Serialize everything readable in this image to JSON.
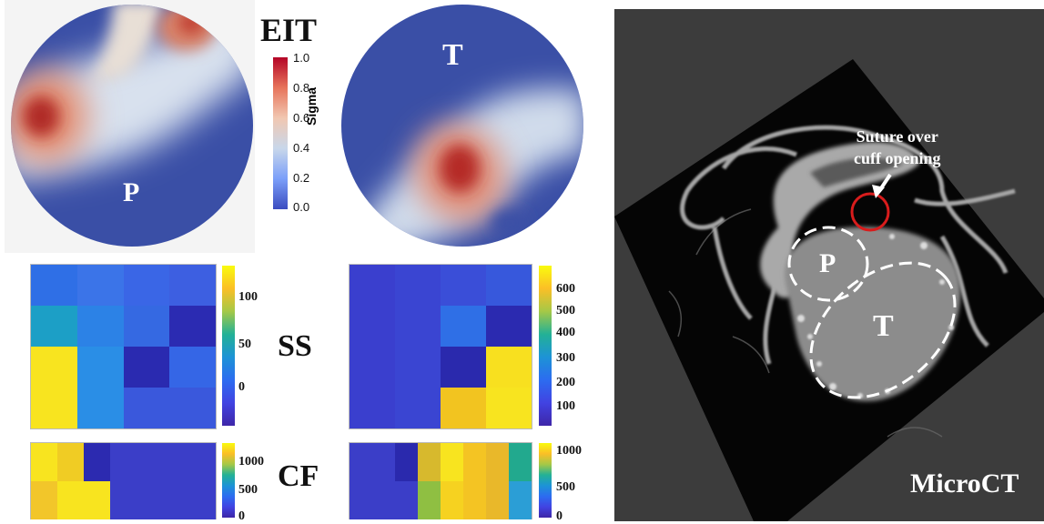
{
  "eit": {
    "label": "EIT",
    "left_region": "P",
    "right_region": "T",
    "colorbar": {
      "title": "Sigma",
      "ticks": [
        "1.0",
        "0.8",
        "0.6",
        "0.4",
        "0.2",
        "0.0"
      ]
    }
  },
  "ss": {
    "label": "SS",
    "left_ticks": [
      "100",
      "50",
      "0"
    ],
    "right_ticks": [
      "600",
      "500",
      "400",
      "300",
      "200",
      "100"
    ],
    "left_grid": [
      [
        "#2f6fe6",
        "#3b74e8",
        "#3a66e6",
        "#3d5fe1"
      ],
      [
        "#1c9fc6",
        "#2c82e6",
        "#3569e2",
        "#2b2bb2"
      ],
      [
        "#f8e41f",
        "#2a8ee6",
        "#2a2ab0",
        "#3566e6"
      ],
      [
        "#f8e41f",
        "#2a8ee6",
        "#3a58dc",
        "#3a58dc"
      ]
    ],
    "right_grid": [
      [
        "#3a3fce",
        "#3a45d2",
        "#3a4ed8",
        "#3758dc"
      ],
      [
        "#3a3fce",
        "#3a45d2",
        "#2f6fe6",
        "#2b2ab0"
      ],
      [
        "#3a3fce",
        "#3a45d2",
        "#2a29ad",
        "#f8e01f"
      ],
      [
        "#3a3fce",
        "#3a45d2",
        "#f2c420",
        "#f8e41f"
      ]
    ]
  },
  "cf": {
    "label": "CF",
    "left_ticks": [
      "1000",
      "500",
      "0"
    ],
    "right_ticks": [
      "1000",
      "500",
      "0"
    ],
    "left_grid": [
      [
        "#f8e41f",
        "#f0cc24",
        "#2c2ab0",
        "#3b3ec8",
        "#3b3ec8",
        "#3b3ec8",
        "#3b3ec8"
      ],
      [
        "#f2c62a",
        "#f8e41f",
        "#f8e41f",
        "#3b3ec8",
        "#3b3ec8",
        "#3b3ec8",
        "#3b3ec8"
      ]
    ],
    "right_grid": [
      [
        "#3b3ec8",
        "#3b3ec8",
        "#2a29ad",
        "#d7b92d",
        "#f8e41f",
        "#f4c423",
        "#e9b82a",
        "#22a98e"
      ],
      [
        "#3b3ec8",
        "#3b3ec8",
        "#3b3ec8",
        "#8fbf42",
        "#f6d220",
        "#f4c423",
        "#e9b82a",
        "#2b9ed6"
      ]
    ]
  },
  "microct": {
    "label": "MicroCT",
    "annotation": "Suture over\ncuff opening",
    "region_p": "P",
    "region_t": "T"
  }
}
